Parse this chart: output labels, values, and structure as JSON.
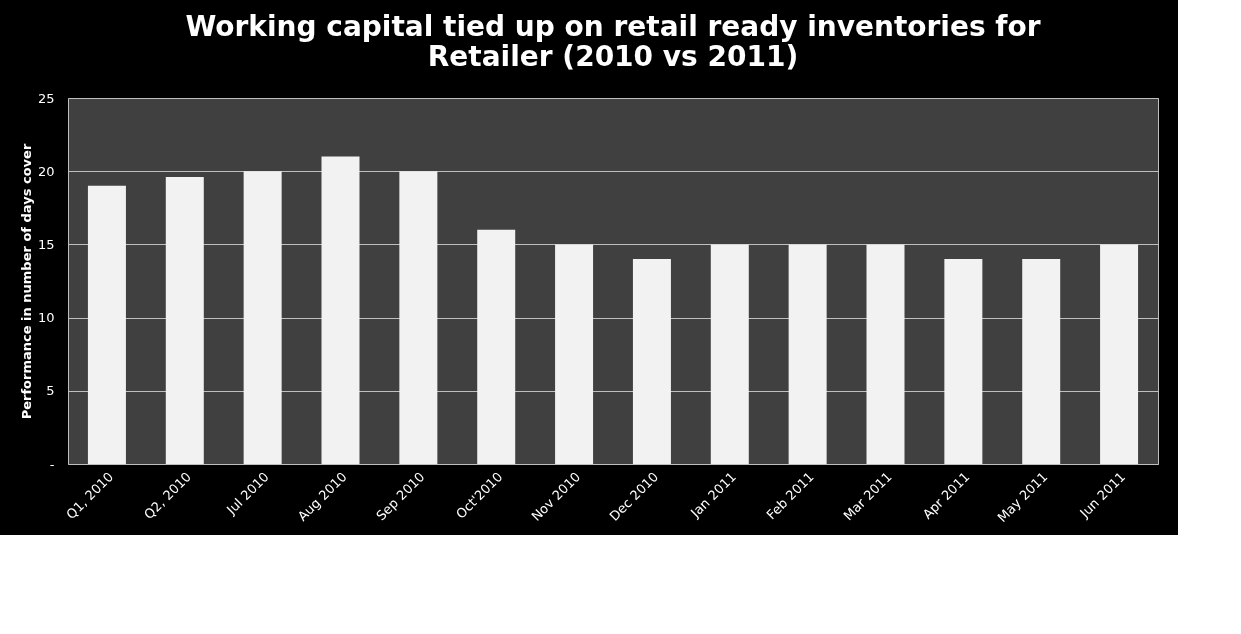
{
  "chart_data": {
    "type": "bar",
    "title": [
      "Working capital tied up on retail ready inventories for",
      "Retailer (2010 vs 2011)"
    ],
    "ylabel": "Performance in number of days  cover",
    "categories": [
      "Q1, 2010",
      "Q2, 2010",
      "Jul 2010",
      "Aug 2010",
      "Sep 2010",
      "Oct'2010",
      "Nov 2010",
      "Dec 2010",
      "Jan 2011",
      "Feb 2011",
      "Mar 2011",
      "Apr 2011",
      "May 2011",
      "Jun 2011"
    ],
    "values": [
      19,
      19.6,
      20,
      21,
      20,
      16,
      15,
      14,
      15,
      15,
      15,
      14,
      14,
      15
    ],
    "color": "#f2f2f2",
    "ylim": [
      0,
      25
    ],
    "yticks": [
      {
        "value": 0,
        "label": "-"
      },
      5,
      10,
      15,
      20,
      25
    ],
    "grid": "y"
  }
}
